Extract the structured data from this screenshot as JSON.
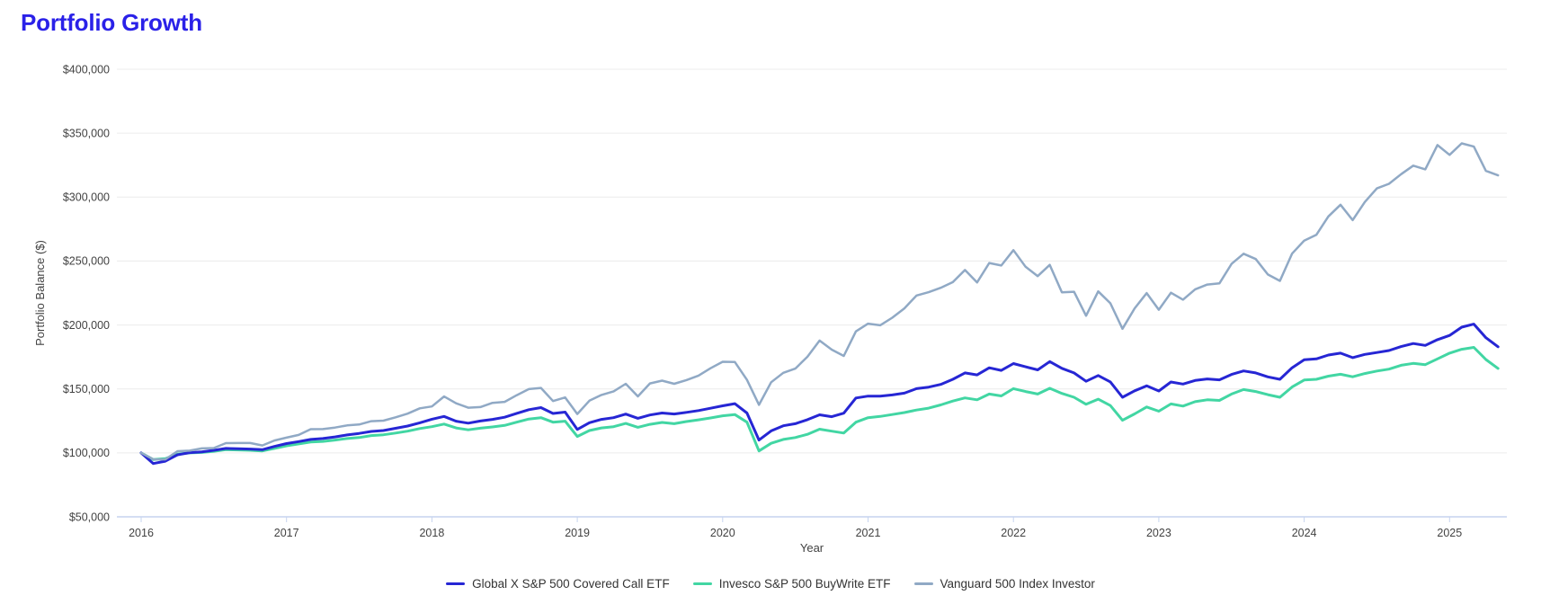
{
  "page": {
    "title": "Portfolio Growth"
  },
  "colors": {
    "title": "#2a21e8",
    "grid_line": "#ececec",
    "axis_line": "#c6d4ef",
    "tick_text": "#424242",
    "legend_text": "#333333",
    "background": "#ffffff"
  },
  "chart_data": {
    "type": "line",
    "title": "Portfolio Growth",
    "xlabel": "Year",
    "ylabel": "Portfolio Balance ($)",
    "grid": "horizontal",
    "legend_position": "bottom",
    "x_start_year": 2016,
    "points_per_year": 12,
    "x_tick_labels": [
      "2016",
      "2017",
      "2018",
      "2019",
      "2020",
      "2021",
      "2022",
      "2023",
      "2024",
      "2025"
    ],
    "y_tick_labels": [
      "$400,000",
      "$350,000",
      "$300,000",
      "$250,000",
      "$200,000",
      "$150,000",
      "$100,000",
      "$50,000"
    ],
    "y_tick_values_k": [
      400,
      350,
      300,
      250,
      200,
      150,
      100,
      50
    ],
    "ylim_k": [
      50,
      400
    ],
    "x_note": "113 monthly points: initial $100k at Jan 2016, then month-end values through Apr 2025; values in $ thousands",
    "series": [
      {
        "name": "Global X S&P 500 Covered Call ETF",
        "color": "#2626d4",
        "values_k": [
          100,
          91.7,
          93.5,
          98.5,
          100.2,
          100.8,
          102,
          103.5,
          103.3,
          103,
          102.5,
          105,
          107.3,
          108.8,
          110.5,
          111.2,
          112.5,
          114,
          115.2,
          116.8,
          117.5,
          119.2,
          121,
          123.5,
          126.3,
          128.5,
          124.8,
          123.2,
          124.9,
          126.2,
          127.9,
          130.9,
          133.8,
          135.4,
          130.8,
          131.9,
          118.3,
          123.6,
          126.2,
          127.5,
          130.3,
          127,
          129.6,
          131.2,
          130.4,
          131.7,
          133.1,
          134.9,
          136.8,
          138.5,
          131.2,
          110,
          117.2,
          121.2,
          122.8,
          126,
          129.8,
          128.3,
          131,
          142.9,
          144.4,
          144.4,
          145.3,
          146.7,
          150.2,
          151.4,
          153.5,
          157.5,
          162.5,
          161,
          166.5,
          164.5,
          169.8,
          167.3,
          164.9,
          171.4,
          166.1,
          162.5,
          156,
          160.5,
          155.5,
          143.5,
          148.5,
          152.4,
          148.4,
          155.4,
          153.8,
          156.6,
          157.8,
          157.1,
          161.3,
          164.1,
          162.5,
          159.4,
          157.5,
          166.5,
          172.8,
          173.5,
          176.5,
          178,
          174.5,
          177,
          178.5,
          180,
          183.1,
          185.5,
          184,
          188.5,
          191.8,
          198.3,
          200.7,
          190.1,
          183
        ]
      },
      {
        "name": "Invesco S&P 500 BuyWrite ETF",
        "color": "#42d6a3",
        "values_k": [
          100,
          94.8,
          95.5,
          99,
          100,
          100.3,
          101.2,
          102.5,
          102.3,
          102,
          101.5,
          103.5,
          105.5,
          107,
          108.5,
          109,
          110,
          111.2,
          112,
          113.5,
          114.2,
          115.5,
          117,
          119,
          120.5,
          122.5,
          119.5,
          118,
          119.3,
          120.3,
          121.5,
          124,
          126.5,
          127.5,
          124,
          124.8,
          112.8,
          117.5,
          119.5,
          120.5,
          123,
          120,
          122.3,
          123.8,
          122.8,
          124.5,
          125.8,
          127.3,
          129,
          130,
          124,
          101.5,
          107.5,
          110.5,
          112,
          114.5,
          118.5,
          117,
          115.5,
          124,
          127.5,
          128.5,
          130,
          131.5,
          133.5,
          135,
          137.5,
          140.5,
          143,
          141.5,
          146,
          144.5,
          150.2,
          148,
          146,
          150.5,
          146.5,
          143.5,
          138,
          142,
          137,
          125.5,
          130.5,
          135.9,
          132.6,
          138.3,
          136.6,
          140,
          141.5,
          141,
          146,
          149.5,
          148,
          145.5,
          143.5,
          151.5,
          157,
          157.5,
          160,
          161.5,
          159.5,
          162,
          164,
          165.5,
          168.5,
          170,
          169,
          173.5,
          178,
          181,
          182.5,
          173,
          166
        ]
      },
      {
        "name": "Vanguard 500 Index Investor",
        "color": "#90a9c5",
        "values_k": [
          100,
          95,
          94.9,
          101.3,
          101.7,
          103.5,
          103.8,
          107.6,
          107.7,
          107.7,
          105.8,
          109.7,
          111.9,
          114,
          118.5,
          118.6,
          119.8,
          121.5,
          122.2,
          124.8,
          125.2,
          127.8,
          130.7,
          134.8,
          136.3,
          144.1,
          138.8,
          135.3,
          135.8,
          139.1,
          139.9,
          145.1,
          149.9,
          150.8,
          140.5,
          143.3,
          130.4,
          140.8,
          145.3,
          148.1,
          154,
          144.2,
          154.3,
          156.5,
          154,
          156.9,
          160.4,
          166.2,
          171.2,
          171.1,
          157.1,
          137.6,
          155.2,
          162.6,
          165.9,
          175.2,
          187.8,
          180.7,
          175.8,
          195,
          201,
          199.8,
          205.7,
          213,
          223,
          225.6,
          229.1,
          233.5,
          243,
          233.3,
          248.5,
          246.5,
          258.5,
          245.5,
          238.2,
          247,
          225.5,
          226,
          207.2,
          226.3,
          217,
          197,
          213,
          224.9,
          211.9,
          225.2,
          219.8,
          227.9,
          231.6,
          232.5,
          247.8,
          255.7,
          251.6,
          239.5,
          234.5,
          255.8,
          266,
          270.5,
          284.9,
          294,
          282,
          296.1,
          306.8,
          310.4,
          317.9,
          324.6,
          321.7,
          340.7,
          333,
          342,
          339.5,
          320.5,
          317
        ]
      }
    ]
  }
}
